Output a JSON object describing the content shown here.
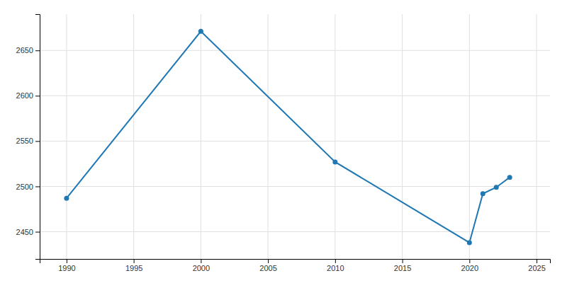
{
  "chart_data": {
    "type": "line",
    "x": [
      1990,
      2000,
      2010,
      2020,
      2021,
      2022,
      2023
    ],
    "values": [
      2487,
      2671,
      2527,
      2438,
      2492,
      2499,
      2510
    ],
    "xlim": [
      1988,
      2026
    ],
    "ylim": [
      2420,
      2690
    ],
    "xticks": [
      1990,
      1995,
      2000,
      2005,
      2010,
      2015,
      2020,
      2025
    ],
    "yticks": [
      2450,
      2500,
      2550,
      2600,
      2650
    ],
    "grid": true,
    "marker": "circle"
  }
}
